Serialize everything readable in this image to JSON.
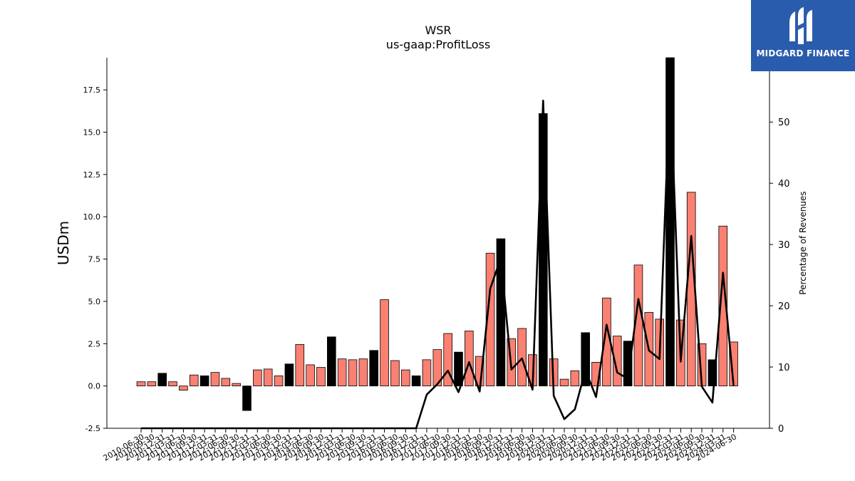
{
  "chart_data": {
    "type": "bar",
    "title": "WSR",
    "subtitle": "us-gaap:ProfitLoss",
    "ylabel": "USDm",
    "y2label": "Percentage of Revenues",
    "ylim": [
      -2.5,
      19.4
    ],
    "y2lim": [
      0,
      60.5
    ],
    "yticks": [
      "-2.5",
      "0.0",
      "2.5",
      "5.0",
      "7.5",
      "10.0",
      "12.5",
      "15.0",
      "17.5"
    ],
    "y2ticks": [
      "0",
      "10",
      "20",
      "30",
      "40",
      "50"
    ],
    "categories": [
      "2010-06-30",
      "2010-09-30",
      "2010-12-31",
      "2011-03-31",
      "2011-06-30",
      "2011-09-30",
      "2011-12-31",
      "2012-03-31",
      "2012-06-30",
      "2012-09-30",
      "2012-12-31",
      "2013-03-31",
      "2013-06-30",
      "2013-09-30",
      "2013-12-31",
      "2014-03-31",
      "2014-06-30",
      "2014-09-30",
      "2014-12-31",
      "2015-03-31",
      "2015-06-30",
      "2015-09-30",
      "2015-12-31",
      "2016-03-31",
      "2016-06-30",
      "2016-09-30",
      "2016-12-31",
      "2017-03-31",
      "2017-06-30",
      "2017-09-30",
      "2017-12-31",
      "2018-03-31",
      "2018-06-30",
      "2018-09-30",
      "2018-12-31",
      "2019-03-31",
      "2019-06-30",
      "2019-09-30",
      "2019-12-31",
      "2020-03-31",
      "2020-06-30",
      "2020-09-30",
      "2020-12-31",
      "2021-03-31",
      "2021-06-30",
      "2021-09-30",
      "2021-12-31",
      "2022-03-31",
      "2022-06-30",
      "2022-09-30",
      "2022-12-31",
      "2023-03-31",
      "2023-06-30",
      "2023-09-30",
      "2023-12-31",
      "2024-03-31",
      "2024-06-30"
    ],
    "series": [
      {
        "type": "bar",
        "values": [
          0.25,
          0.25,
          0.75,
          0.25,
          -0.25,
          0.65,
          0.6,
          0.8,
          0.45,
          0.15,
          -1.45,
          0.95,
          1.0,
          0.6,
          1.3,
          2.45,
          1.25,
          1.1,
          2.9,
          1.6,
          1.55,
          1.6,
          2.1,
          5.1,
          1.5,
          0.95,
          0.6,
          1.55,
          2.15,
          3.1,
          2.0,
          3.25,
          1.75,
          7.85,
          8.7,
          2.8,
          3.4,
          1.85,
          16.1,
          1.6,
          0.4,
          0.9,
          3.15,
          1.4,
          5.2,
          2.95,
          2.65,
          7.15,
          4.35,
          3.95,
          19.4,
          3.9,
          11.45,
          2.5,
          1.55,
          9.45,
          2.6
        ],
        "colors": [
          "#fa8072",
          "#fa8072",
          "#000000",
          "#fa8072",
          "#fa8072",
          "#fa8072",
          "#000000",
          "#fa8072",
          "#fa8072",
          "#fa8072",
          "#000000",
          "#fa8072",
          "#fa8072",
          "#fa8072",
          "#000000",
          "#fa8072",
          "#fa8072",
          "#fa8072",
          "#000000",
          "#fa8072",
          "#fa8072",
          "#fa8072",
          "#000000",
          "#fa8072",
          "#fa8072",
          "#fa8072",
          "#000000",
          "#fa8072",
          "#fa8072",
          "#fa8072",
          "#000000",
          "#fa8072",
          "#fa8072",
          "#fa8072",
          "#000000",
          "#fa8072",
          "#fa8072",
          "#fa8072",
          "#000000",
          "#fa8072",
          "#fa8072",
          "#fa8072",
          "#000000",
          "#fa8072",
          "#fa8072",
          "#fa8072",
          "#000000",
          "#fa8072",
          "#fa8072",
          "#fa8072",
          "#000000",
          "#fa8072",
          "#fa8072",
          "#fa8072",
          "#000000",
          "#fa8072",
          "#fa8072"
        ]
      },
      {
        "type": "line",
        "axis": "right",
        "color": "#000000",
        "values": [
          0,
          0,
          0,
          0,
          0,
          0,
          0,
          0,
          0,
          0,
          0,
          0,
          0,
          0,
          0,
          0,
          0,
          0,
          0,
          0,
          0,
          0,
          0,
          0,
          0,
          0,
          0,
          5.5,
          7.2,
          9.4,
          5.9,
          10.8,
          6.0,
          22.8,
          27.8,
          9.6,
          11.4,
          6.3,
          53.5,
          5.3,
          1.5,
          3.1,
          9.5,
          5.1,
          16.9,
          9.1,
          8.1,
          21.1,
          12.7,
          11.3,
          57.0,
          10.9,
          31.4,
          6.8,
          4.2,
          25.4,
          6.9
        ]
      }
    ],
    "grid": false,
    "legend": "none"
  },
  "logo": {
    "text": "MIDGARD FINANCE",
    "bg": "#2a5cad"
  }
}
